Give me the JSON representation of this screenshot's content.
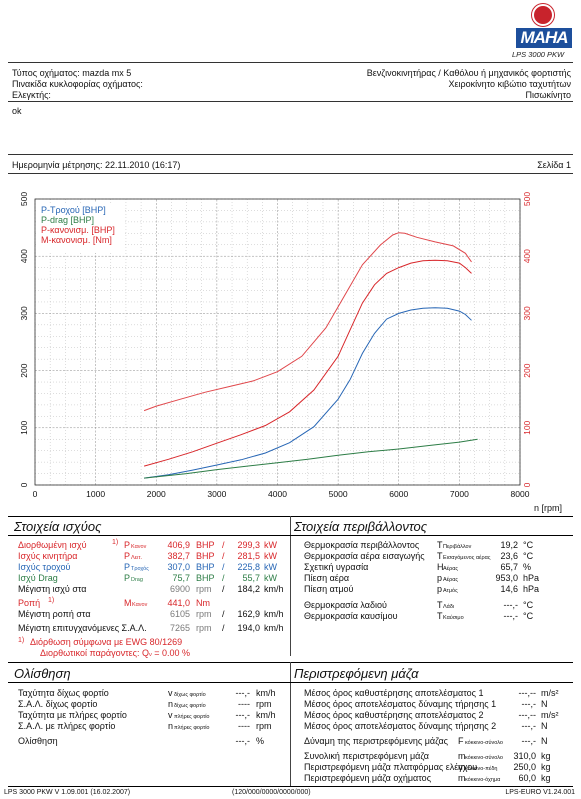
{
  "logo": {
    "brand": "MAHA",
    "model_caption": "LPS 3000 PKW"
  },
  "header": {
    "vehicle_type": "Τύπος οχήματος: mazda mx 5",
    "plate": "Πινακίδα κυκλοφορίας οχήματος:",
    "inspector": "Ελεγκτής:",
    "engine_type": "Βενζινοκινητήρας / Καθόλου ή μηχανικός φορτιστής",
    "gearbox": "Χειροκίνητο κιβώτιο ταχυτήτων",
    "drive": "Πισωκίνητο",
    "comment": "ok",
    "measure_date": "Ημερομηνία μέτρησης: 22.11.2010 (16:17)",
    "page": "Σελίδα 1"
  },
  "chart_data": {
    "type": "line",
    "xlabel": "n [rpm]",
    "x_ticks": [
      0,
      1000,
      2000,
      3000,
      4000,
      5000,
      6000,
      7000,
      8000
    ],
    "y_left_ticks": [
      0,
      100,
      200,
      300,
      400,
      500
    ],
    "y_right_ticks": [
      0,
      100,
      200,
      300,
      400,
      500
    ],
    "xlim": [
      0,
      8000
    ],
    "ylim": [
      0,
      500
    ],
    "grid": true,
    "legend": "top-left",
    "series": [
      {
        "name": "P-Τροχού [BHP]",
        "color": "#2766b5",
        "x": [
          1800,
          2200,
          2600,
          3000,
          3400,
          3800,
          4200,
          4600,
          5000,
          5200,
          5400,
          5600,
          5800,
          6000,
          6200,
          6400,
          6600,
          6800,
          7000,
          7100,
          7200
        ],
        "y": [
          12,
          18,
          26,
          35,
          44,
          56,
          74,
          102,
          150,
          185,
          230,
          265,
          290,
          300,
          306,
          309,
          310,
          309,
          304,
          298,
          288
        ]
      },
      {
        "name": "P-drag [BHP]",
        "color": "#2d7d46",
        "x": [
          1800,
          2500,
          3000,
          3500,
          4000,
          4500,
          5000,
          5500,
          6000,
          6500,
          7000,
          7300
        ],
        "y": [
          12,
          20,
          27,
          33,
          39,
          45,
          52,
          58,
          63,
          69,
          75,
          80
        ]
      },
      {
        "name": "P-κανονισμ. [BHP]",
        "color": "#d8262a",
        "x": [
          1800,
          2200,
          2600,
          3000,
          3400,
          3800,
          4200,
          4600,
          5000,
          5200,
          5400,
          5600,
          5800,
          6000,
          6200,
          6400,
          6600,
          6800,
          7000,
          7100,
          7200
        ],
        "y": [
          33,
          45,
          58,
          73,
          88,
          104,
          128,
          166,
          225,
          272,
          318,
          350,
          370,
          380,
          388,
          392,
          393,
          392,
          388,
          380,
          370
        ]
      },
      {
        "name": "M-κανονισμ. [Nm]",
        "color": "#e0474b",
        "x": [
          1800,
          2000,
          2400,
          2800,
          3200,
          3600,
          4000,
          4400,
          4800,
          5100,
          5400,
          5700,
          5900,
          6000,
          6100,
          6300,
          6600,
          6900,
          7100,
          7200
        ],
        "y": [
          130,
          138,
          150,
          162,
          172,
          182,
          198,
          225,
          275,
          330,
          385,
          420,
          437,
          441,
          440,
          433,
          425,
          418,
          405,
          390
        ]
      }
    ]
  },
  "power": {
    "title": "Στοιχεία ισχύος",
    "rows": [
      {
        "label": "Διορθωμένη ισχύ",
        "sup": "1)",
        "sym": "P",
        "symsub": "Κανον",
        "v1": "406,9",
        "u1": "BHP",
        "v2": "299,3",
        "u2": "kW",
        "color": "red"
      },
      {
        "label": "Ισχύς κινητήρα",
        "sup": "",
        "sym": "P",
        "symsub": "Λειτ.",
        "v1": "382,7",
        "u1": "BHP",
        "v2": "281,5",
        "u2": "kW",
        "color": "red"
      },
      {
        "label": "Ισχύς τροχού",
        "sup": "",
        "sym": "P",
        "symsub": "Τροχός",
        "v1": "307,0",
        "u1": "BHP",
        "v2": "225,8",
        "u2": "kW",
        "color": "blue"
      },
      {
        "label": "Ισχύ Drag",
        "sup": "",
        "sym": "P",
        "symsub": "Drag",
        "v1": "75,7",
        "u1": "BHP",
        "v2": "55,7",
        "u2": "kW",
        "color": "green"
      }
    ],
    "max_power_rpm": {
      "label": "Μέγιστη ισχύ στα",
      "rpm": "6900",
      "rpm_unit": "rpm",
      "v2": "184,2",
      "u2": "km/h"
    },
    "torque": {
      "label": "Ροπή",
      "sup": "1)",
      "sym": "M",
      "symsub": "Κανον",
      "v1": "441,0",
      "u1": "Nm"
    },
    "max_torque_rpm": {
      "label": "Μέγιστη ροπή στα",
      "rpm": "6105",
      "rpm_unit": "rpm",
      "v2": "162,9",
      "u2": "km/h"
    },
    "max_rpm": {
      "label": "Μέγιστη επιτυγχανόμενες Σ.Α.Λ.",
      "rpm": "7265",
      "rpm_unit": "rpm",
      "v2": "194,0",
      "u2": "km/h"
    },
    "note1": "Διόρθωση σύμφωνα με EWG 80/1269",
    "note1_sup": "1)",
    "note2": "Διορθωτικοί παράγοντες: Q",
    "note2_sub": "ν",
    "note2_val": "= 0.00 %"
  },
  "environment": {
    "title": "Στοιχεία περιβάλλοντος",
    "rows": [
      {
        "label": "Θερμοκρασία περιβάλλοντος",
        "sym": "T",
        "symsub": "Περιβάλλον",
        "val": "19,2",
        "unit": "°C"
      },
      {
        "label": "Θερμοκρασία αέρα εισαγωγής",
        "sym": "T",
        "symsub": "Εισαγόμενος αέρας",
        "val": "23,6",
        "unit": "°C"
      },
      {
        "label": "Σχετική υγρασία",
        "sym": "H",
        "symsub": "Αέρας",
        "val": "65,7",
        "unit": "%"
      },
      {
        "label": "Πίεση αέρα",
        "sym": "p",
        "symsub": "Αέρας",
        "val": "953,0",
        "unit": "hPa"
      },
      {
        "label": "Πίεση ατμού",
        "sym": "p",
        "symsub": "Ατμός",
        "val": "14,6",
        "unit": "hPa"
      },
      {
        "label": "Θερμοκρασία λαδιού",
        "sym": "T",
        "symsub": "Λάδι",
        "val": "---,-",
        "unit": "°C"
      },
      {
        "label": "Θερμοκρασία καυσίμου",
        "sym": "T",
        "symsub": "Καύσιμο",
        "val": "---,-",
        "unit": "°C"
      }
    ]
  },
  "coastdown": {
    "title": "Ολίσθηση",
    "rows": [
      {
        "label": "Ταχύτητα δίχως φορτίο",
        "sym": "v",
        "symsub": "δίχως φορτίο",
        "val": "---,-",
        "unit": "km/h"
      },
      {
        "label": "Σ.Α.Λ. δίχως φορτίο",
        "sym": "n",
        "symsub": "δίχως φορτίο",
        "val": "----",
        "unit": "rpm"
      },
      {
        "label": "Ταχύτητα με πλήρες φορτίο",
        "sym": "v",
        "symsub": "πλήρες φορτίο",
        "val": "---,-",
        "unit": "km/h"
      },
      {
        "label": "Σ.Α.Λ. με πλήρες φορτίο",
        "sym": "n",
        "symsub": "πλήρες φορτίο",
        "val": "----",
        "unit": "rpm"
      },
      {
        "label": "Ολίσθηση",
        "sym": "",
        "symsub": "",
        "val": "---,-",
        "unit": "%"
      }
    ]
  },
  "rotating": {
    "title": "Περιστρεφόμενη μάζα",
    "rows": [
      {
        "label": "Μέσος όρος καθυστέρησης αποτελέσματος 1",
        "val": "---,--",
        "unit": "m/s²"
      },
      {
        "label": "Μέσος όρος αποτελέσματος δύναμης τήρησης 1",
        "val": "---,-",
        "unit": "N"
      },
      {
        "label": "Μέσος όρος καθυστέρησης αποτελέσματος 2",
        "val": "---,--",
        "unit": "m/s²"
      },
      {
        "label": "Μέσος όρος αποτελέσματος δύναμης τήρησης 2",
        "val": "---,-",
        "unit": "N"
      },
      {
        "label": "Δύναμη της περιστρεφόμενης μάζας",
        "sym": "F",
        "symsub": "κόκκινο-σύνολο",
        "val": "---,-",
        "unit": "N"
      },
      {
        "label": "Συνολική περιστρεφόμενη μάζα",
        "sym": "m",
        "symsub": "κόκκινο-σύνολο",
        "val": "310,0",
        "unit": "kg"
      },
      {
        "label": "Περιστρεφόμενη μάζα πλατφόρμας ελέγχου",
        "sym": "m",
        "symsub": "κόκκινο-πέδη",
        "val": "250,0",
        "unit": "kg"
      },
      {
        "label": "Περιστρεφόμενη μάζα οχήματος",
        "sym": "m",
        "symsub": "κόκκινο-όχημα",
        "val": "60,0",
        "unit": "kg"
      }
    ]
  },
  "footer": {
    "left": "LPS 3000 PKW V 1.09.001 (16.02.2007)",
    "center": "(120/000/0000/0000/000)",
    "right": "LPS-EURO V1.24.001"
  }
}
